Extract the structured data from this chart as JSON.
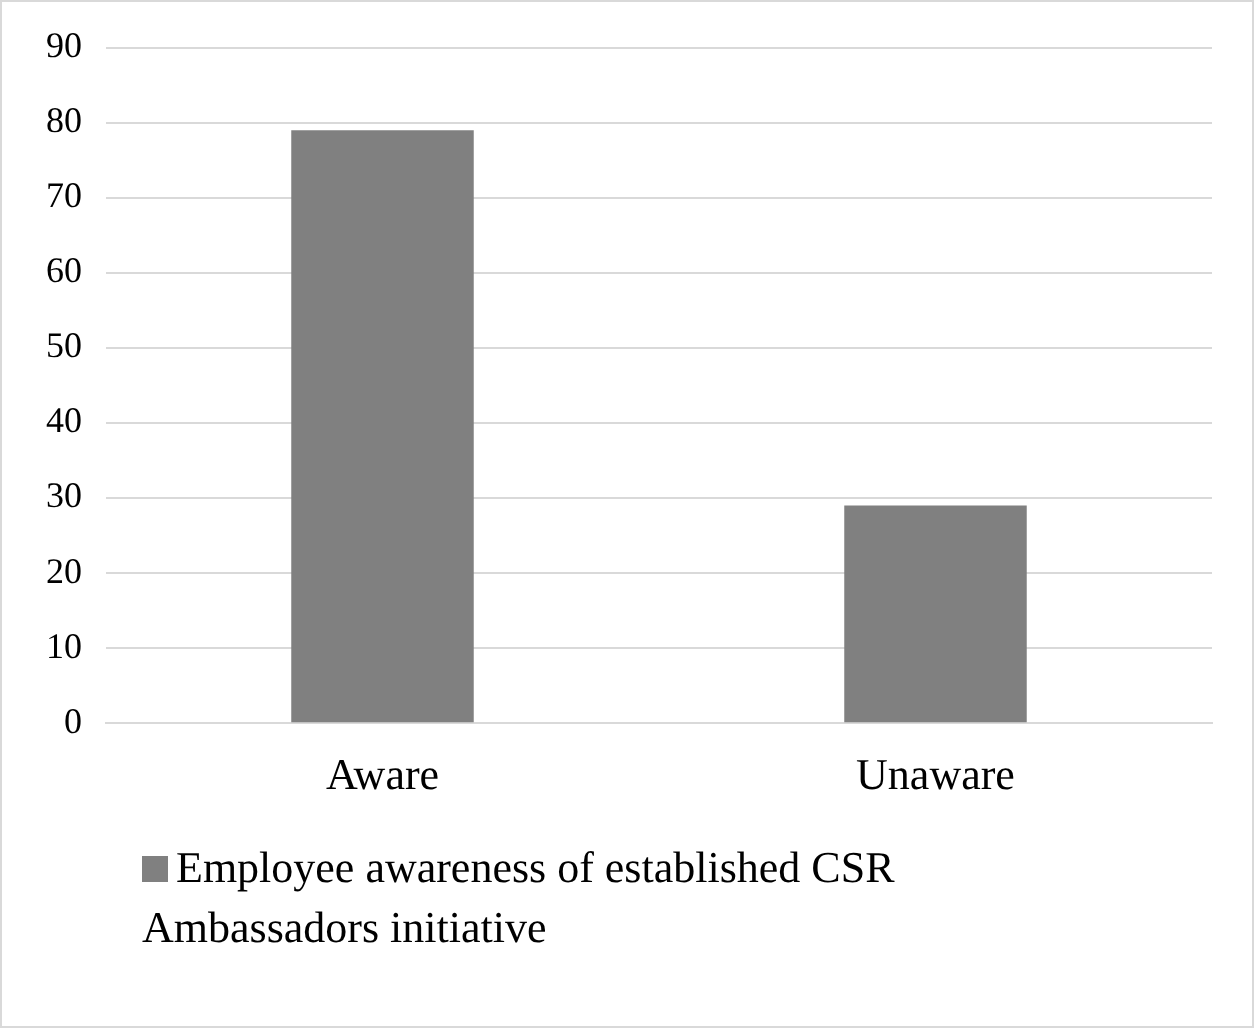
{
  "chart_data": {
    "type": "bar",
    "categories": [
      "Aware",
      "Unaware"
    ],
    "series": [
      {
        "name": "Employee awareness of established CSR Ambassadors initiative",
        "color": "#808080",
        "values": [
          79,
          29
        ]
      }
    ],
    "ylim": [
      0,
      90
    ],
    "yticks": [
      0,
      10,
      20,
      30,
      40,
      50,
      60,
      70,
      80,
      90
    ],
    "grid": "y",
    "legend": "bottom"
  }
}
